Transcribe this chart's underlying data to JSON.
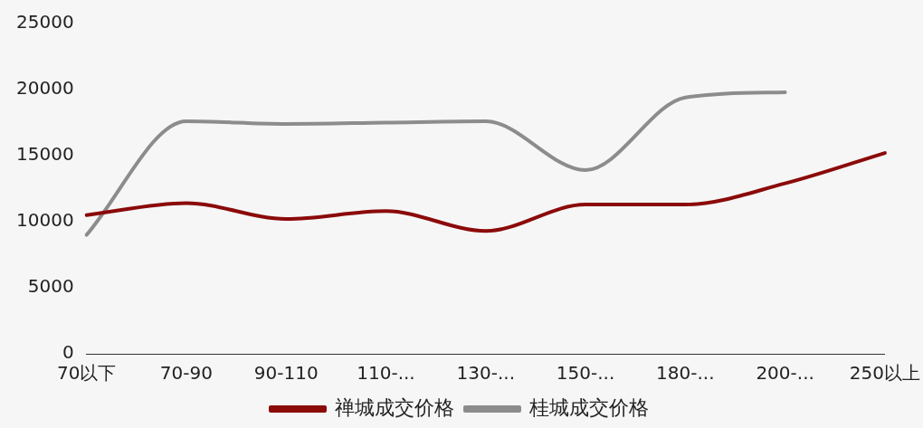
{
  "chart_data": {
    "type": "line",
    "categories": [
      "70以下",
      "70-90",
      "90-110",
      "110-...",
      "130-...",
      "150-...",
      "180-...",
      "200-...",
      "250以上"
    ],
    "series": [
      {
        "name": "禅城成交价格",
        "color": "#8b0a0a",
        "values": [
          10500,
          11400,
          10200,
          10800,
          9300,
          11300,
          11300,
          12900,
          15200
        ]
      },
      {
        "name": "桂城成交价格",
        "color": "#8c8c8c",
        "values": [
          9000,
          17600,
          17400,
          17500,
          17600,
          13900,
          19400,
          19800,
          null
        ]
      }
    ],
    "ylim": [
      0,
      25000
    ],
    "yticks": [
      0,
      5000,
      10000,
      15000,
      20000,
      25000
    ],
    "grid": false,
    "legend": "bottom",
    "marker": "none",
    "line_style": "solid"
  }
}
